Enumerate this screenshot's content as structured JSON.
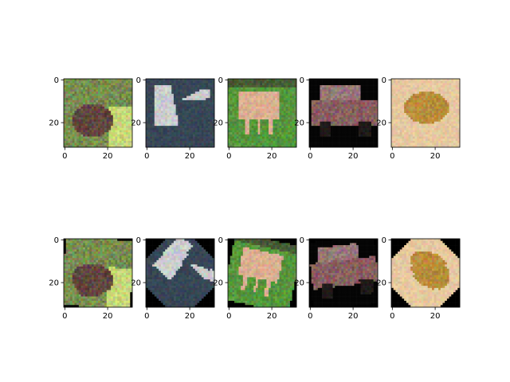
{
  "figure": {
    "subplots": [
      {
        "row": 0,
        "col": 0,
        "subject": "frog",
        "transform": "original"
      },
      {
        "row": 0,
        "col": 1,
        "subject": "bird",
        "transform": "original"
      },
      {
        "row": 0,
        "col": 2,
        "subject": "horse",
        "transform": "original"
      },
      {
        "row": 0,
        "col": 3,
        "subject": "car",
        "transform": "original"
      },
      {
        "row": 0,
        "col": 4,
        "subject": "frog",
        "transform": "original"
      },
      {
        "row": 1,
        "col": 0,
        "subject": "frog",
        "transform": "rotated"
      },
      {
        "row": 1,
        "col": 1,
        "subject": "bird",
        "transform": "rotated"
      },
      {
        "row": 1,
        "col": 2,
        "subject": "horse",
        "transform": "rotated"
      },
      {
        "row": 1,
        "col": 3,
        "subject": "car",
        "transform": "rotated"
      },
      {
        "row": 1,
        "col": 4,
        "subject": "frog",
        "transform": "rotated"
      }
    ],
    "x_ticks": [
      "0",
      "20"
    ],
    "y_ticks": [
      "0",
      "20"
    ],
    "image_size": [
      32,
      32
    ]
  }
}
